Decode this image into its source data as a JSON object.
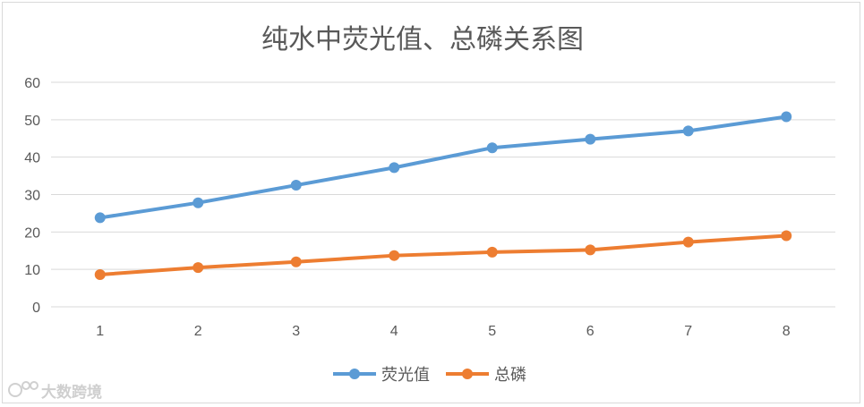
{
  "chart_data": {
    "type": "line",
    "title": "纯水中荧光值、总磷关系图",
    "categories": [
      "1",
      "2",
      "3",
      "4",
      "5",
      "6",
      "7",
      "8"
    ],
    "ylim": [
      0,
      60
    ],
    "yticks": [
      0,
      10,
      20,
      30,
      40,
      50,
      60
    ],
    "grid": true,
    "legend_position": "bottom",
    "series": [
      {
        "name": "荧光值",
        "color": "#5b9bd5",
        "values": [
          23.8,
          27.8,
          32.5,
          37.2,
          42.5,
          44.8,
          47.0,
          50.8
        ]
      },
      {
        "name": "总磷",
        "color": "#ed7d31",
        "values": [
          8.6,
          10.5,
          12.0,
          13.7,
          14.6,
          15.2,
          17.3,
          19.0
        ]
      }
    ]
  },
  "watermark": {
    "text": "大数跨境"
  }
}
